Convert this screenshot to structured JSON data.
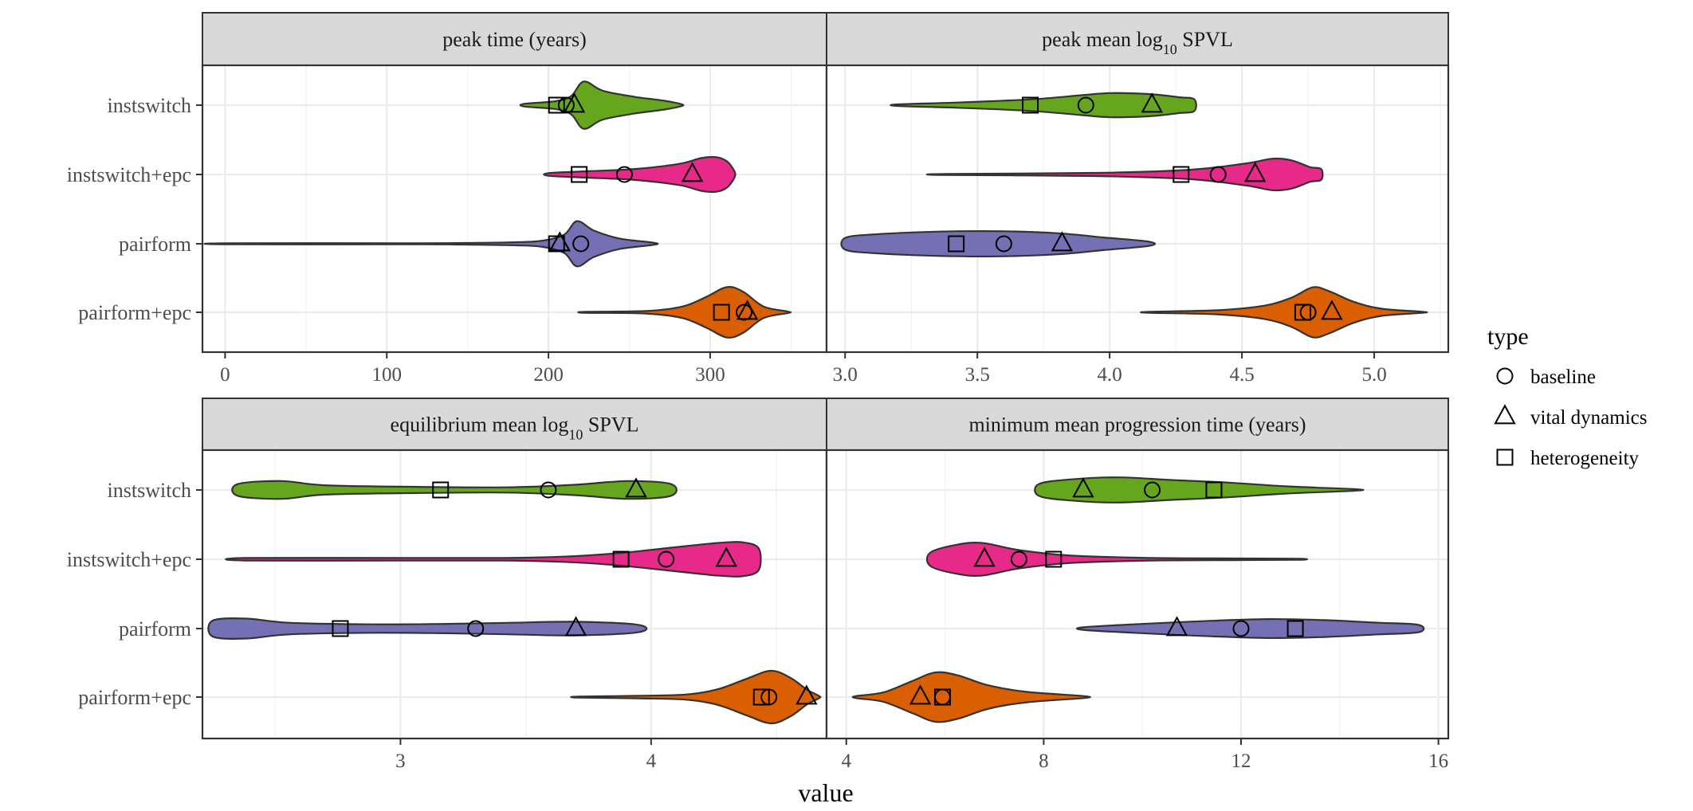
{
  "chart_data": {
    "type": "violin",
    "xlabel": "value",
    "categories": [
      "instswitch",
      "instswitch+epc",
      "pairform",
      "pairform+epc"
    ],
    "colors": {
      "instswitch": "#66a61e",
      "instswitch+epc": "#e7298a",
      "pairform": "#7570b3",
      "pairform+epc": "#d95f02"
    },
    "legend": {
      "title": "type",
      "placement": "right",
      "items": [
        {
          "label": "baseline",
          "shape": "circle"
        },
        {
          "label": "vital dynamics",
          "shape": "triangle"
        },
        {
          "label": "heterogeneity",
          "shape": "square"
        }
      ]
    },
    "panels": [
      {
        "title": "peak time (years)",
        "xlim": [
          -14,
          372
        ],
        "xticks": [
          0,
          100,
          200,
          300
        ],
        "xtick_labels": [
          "0",
          "100",
          "200",
          "300"
        ],
        "violins": [
          {
            "category": "instswitch",
            "range": [
              185,
              282
            ],
            "mode": 222,
            "profile": [
              [
                0,
                0.05
              ],
              [
                0.2,
                0.15
              ],
              [
                0.3,
                0.35
              ],
              [
                0.38,
                0.9
              ],
              [
                0.5,
                0.55
              ],
              [
                0.7,
                0.32
              ],
              [
                0.88,
                0.18
              ],
              [
                1,
                0.04
              ]
            ]
          },
          {
            "category": "instswitch+epc",
            "range": [
              200,
              315
            ],
            "mode": 302,
            "profile": [
              [
                0,
                0.05
              ],
              [
                0.2,
                0.12
              ],
              [
                0.45,
                0.2
              ],
              [
                0.7,
                0.4
              ],
              [
                0.82,
                0.62
              ],
              [
                0.9,
                0.66
              ],
              [
                0.96,
                0.5
              ],
              [
                1,
                0.12
              ]
            ]
          },
          {
            "category": "pairform",
            "range": [
              2,
              265
            ],
            "mode": 225,
            "profile": [
              [
                0,
                0.02
              ],
              [
                0.45,
                0.02
              ],
              [
                0.55,
                0.03
              ],
              [
                0.68,
                0.06
              ],
              [
                0.74,
                0.12
              ],
              [
                0.79,
                0.35
              ],
              [
                0.82,
                0.86
              ],
              [
                0.86,
                0.5
              ],
              [
                0.92,
                0.2
              ],
              [
                1,
                0.04
              ]
            ]
          },
          {
            "category": "pairform+epc",
            "range": [
              223,
              348
            ],
            "mode": 308,
            "profile": [
              [
                0,
                0.02
              ],
              [
                0.3,
                0.05
              ],
              [
                0.48,
                0.22
              ],
              [
                0.6,
                0.6
              ],
              [
                0.7,
                0.96
              ],
              [
                0.78,
                0.78
              ],
              [
                0.88,
                0.22
              ],
              [
                1,
                0.03
              ]
            ]
          }
        ],
        "points": {
          "instswitch": {
            "baseline": 211,
            "vital dynamics": 216,
            "heterogeneity": 205
          },
          "instswitch+epc": {
            "baseline": 247,
            "vital dynamics": 289,
            "heterogeneity": 219
          },
          "pairform": {
            "baseline": 220,
            "vital dynamics": 207,
            "heterogeneity": 205
          },
          "pairform+epc": {
            "baseline": 321,
            "vital dynamics": 323,
            "heterogeneity": 307
          }
        }
      },
      {
        "title": "peak mean log",
        "title_sub": "10",
        "title_suffix": " SPVL",
        "xlim": [
          2.93,
          5.28
        ],
        "xticks": [
          3.0,
          3.5,
          4.0,
          4.5,
          5.0
        ],
        "xtick_labels": [
          "3.0",
          "3.5",
          "4.0",
          "4.5",
          "5.0"
        ],
        "violins": [
          {
            "category": "instswitch",
            "range": [
              3.2,
              4.32
            ],
            "mode": 4.0,
            "profile": [
              [
                0,
                0.03
              ],
              [
                0.2,
                0.1
              ],
              [
                0.45,
                0.22
              ],
              [
                0.62,
                0.38
              ],
              [
                0.72,
                0.46
              ],
              [
                0.85,
                0.42
              ],
              [
                0.95,
                0.3
              ],
              [
                1,
                0.22
              ]
            ]
          },
          {
            "category": "instswitch+epc",
            "range": [
              3.38,
              4.8
            ],
            "mode": 4.62,
            "profile": [
              [
                0,
                0.02
              ],
              [
                0.4,
                0.06
              ],
              [
                0.65,
                0.18
              ],
              [
                0.8,
                0.42
              ],
              [
                0.87,
                0.6
              ],
              [
                0.92,
                0.54
              ],
              [
                0.97,
                0.28
              ],
              [
                1,
                0.2
              ]
            ]
          },
          {
            "category": "pairform",
            "range": [
              3.0,
              4.15
            ],
            "mode": 3.45,
            "profile": [
              [
                0,
                0.22
              ],
              [
                0.1,
                0.36
              ],
              [
                0.3,
                0.46
              ],
              [
                0.5,
                0.48
              ],
              [
                0.7,
                0.4
              ],
              [
                0.85,
                0.24
              ],
              [
                1,
                0.08
              ]
            ]
          },
          {
            "category": "pairform+epc",
            "range": [
              4.15,
              5.18
            ],
            "mode": 4.76,
            "profile": [
              [
                0,
                0.02
              ],
              [
                0.25,
                0.08
              ],
              [
                0.42,
                0.25
              ],
              [
                0.52,
                0.55
              ],
              [
                0.6,
                0.95
              ],
              [
                0.66,
                0.8
              ],
              [
                0.75,
                0.4
              ],
              [
                0.85,
                0.14
              ],
              [
                1,
                0.02
              ]
            ]
          }
        ],
        "points": {
          "instswitch": {
            "baseline": 3.91,
            "vital dynamics": 4.16,
            "heterogeneity": 3.7
          },
          "instswitch+epc": {
            "baseline": 4.41,
            "vital dynamics": 4.55,
            "heterogeneity": 4.27
          },
          "pairform": {
            "baseline": 3.6,
            "vital dynamics": 3.82,
            "heterogeneity": 3.42
          },
          "pairform+epc": {
            "baseline": 4.75,
            "vital dynamics": 4.84,
            "heterogeneity": 4.73
          }
        }
      },
      {
        "title": "equilibrium mean log",
        "title_sub": "10",
        "title_suffix": " SPVL",
        "xlim": [
          2.21,
          4.7
        ],
        "xticks": [
          3,
          4
        ],
        "xtick_labels": [
          "3",
          "4"
        ],
        "violins": [
          {
            "category": "instswitch",
            "range": [
              2.35,
              4.08
            ],
            "mode": 3.9,
            "profile": [
              [
                0,
                0.22
              ],
              [
                0.1,
                0.34
              ],
              [
                0.2,
                0.18
              ],
              [
                0.4,
                0.12
              ],
              [
                0.62,
                0.1
              ],
              [
                0.78,
                0.2
              ],
              [
                0.9,
                0.34
              ],
              [
                1,
                0.22
              ]
            ]
          },
          {
            "category": "instswitch+epc",
            "range": [
              2.38,
              4.43
            ],
            "mode": 4.3,
            "profile": [
              [
                0,
                0.05
              ],
              [
                0.3,
                0.05
              ],
              [
                0.5,
                0.05
              ],
              [
                0.62,
                0.1
              ],
              [
                0.72,
                0.22
              ],
              [
                0.82,
                0.42
              ],
              [
                0.92,
                0.62
              ],
              [
                0.97,
                0.64
              ],
              [
                1,
                0.4
              ]
            ]
          },
          {
            "category": "pairform",
            "range": [
              2.25,
              3.95
            ],
            "mode": 2.4,
            "profile": [
              [
                0,
                0.3
              ],
              [
                0.08,
                0.38
              ],
              [
                0.18,
                0.22
              ],
              [
                0.38,
                0.16
              ],
              [
                0.55,
                0.18
              ],
              [
                0.7,
                0.22
              ],
              [
                0.85,
                0.26
              ],
              [
                1,
                0.14
              ]
            ]
          },
          {
            "category": "pairform+epc",
            "range": [
              3.71,
              4.67
            ],
            "mode": 4.52,
            "profile": [
              [
                0,
                0.02
              ],
              [
                0.25,
                0.05
              ],
              [
                0.45,
                0.1
              ],
              [
                0.58,
                0.3
              ],
              [
                0.7,
                0.7
              ],
              [
                0.8,
                1.0
              ],
              [
                0.88,
                0.74
              ],
              [
                0.95,
                0.28
              ],
              [
                1,
                0.04
              ]
            ]
          }
        ],
        "points": {
          "instswitch": {
            "baseline": 3.59,
            "vital dynamics": 3.94,
            "heterogeneity": 3.16
          },
          "instswitch+epc": {
            "baseline": 4.06,
            "vital dynamics": 4.3,
            "heterogeneity": 3.88
          },
          "pairform": {
            "baseline": 3.3,
            "vital dynamics": 3.7,
            "heterogeneity": 2.76
          },
          "pairform+epc": {
            "baseline": 4.47,
            "vital dynamics": 4.62,
            "heterogeneity": 4.44
          }
        }
      },
      {
        "title": "minimum mean progression time (years)",
        "xlim": [
          3.6,
          16.2
        ],
        "xticks": [
          4,
          8,
          12,
          16
        ],
        "xtick_labels": [
          "4",
          "8",
          "12",
          "16"
        ],
        "violins": [
          {
            "category": "instswitch",
            "range": [
              7.9,
              14.3
            ],
            "mode": 9.8,
            "profile": [
              [
                0,
                0.22
              ],
              [
                0.1,
                0.4
              ],
              [
                0.25,
                0.48
              ],
              [
                0.42,
                0.38
              ],
              [
                0.6,
                0.28
              ],
              [
                0.78,
                0.14
              ],
              [
                1,
                0.03
              ]
            ]
          },
          {
            "category": "instswitch+epc",
            "range": [
              5.7,
              13.2
            ],
            "mode": 6.6,
            "profile": [
              [
                0,
                0.25
              ],
              [
                0.07,
                0.55
              ],
              [
                0.14,
                0.62
              ],
              [
                0.24,
                0.35
              ],
              [
                0.38,
                0.14
              ],
              [
                0.6,
                0.05
              ],
              [
                0.85,
                0.03
              ],
              [
                1,
                0.02
              ]
            ]
          },
          {
            "category": "pairform",
            "range": [
              8.8,
              15.6
            ],
            "mode": 12.5,
            "profile": [
              [
                0,
                0.05
              ],
              [
                0.15,
                0.16
              ],
              [
                0.35,
                0.28
              ],
              [
                0.55,
                0.36
              ],
              [
                0.72,
                0.32
              ],
              [
                0.88,
                0.22
              ],
              [
                1,
                0.14
              ]
            ]
          },
          {
            "category": "pairform+epc",
            "range": [
              4.2,
              8.8
            ],
            "mode": 5.8,
            "profile": [
              [
                0,
                0.04
              ],
              [
                0.12,
                0.18
              ],
              [
                0.25,
                0.62
              ],
              [
                0.35,
                0.94
              ],
              [
                0.45,
                0.82
              ],
              [
                0.58,
                0.45
              ],
              [
                0.75,
                0.2
              ],
              [
                1,
                0.04
              ]
            ]
          }
        ],
        "points": {
          "instswitch": {
            "baseline": 10.2,
            "vital dynamics": 8.8,
            "heterogeneity": 11.45
          },
          "instswitch+epc": {
            "baseline": 7.5,
            "vital dynamics": 6.8,
            "heterogeneity": 8.2
          },
          "pairform": {
            "baseline": 12.0,
            "vital dynamics": 10.7,
            "heterogeneity": 13.1
          },
          "pairform+epc": {
            "baseline": 5.95,
            "vital dynamics": 5.5,
            "heterogeneity": 5.95
          }
        }
      }
    ]
  }
}
